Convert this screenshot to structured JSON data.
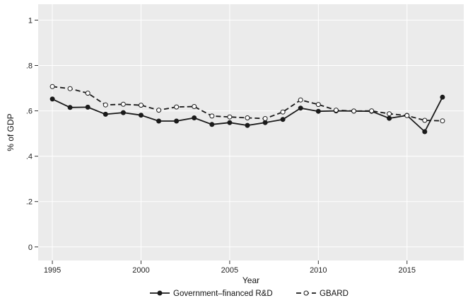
{
  "chart_data": {
    "type": "line",
    "xlabel": "Year",
    "ylabel": "% of GDP",
    "xlim": [
      1994.2,
      2018.2
    ],
    "ylim": [
      -0.06,
      1.07
    ],
    "xticks": [
      1995,
      2000,
      2005,
      2010,
      2015
    ],
    "yticks": [
      0,
      0.2,
      0.4,
      0.6,
      0.8,
      1
    ],
    "ytick_labels": [
      "0",
      ".2",
      ".4",
      ".6",
      ".8",
      "1"
    ],
    "grid": true,
    "legend_position": "bottom",
    "x": [
      1995,
      1996,
      1997,
      1998,
      1999,
      2000,
      2001,
      2002,
      2003,
      2004,
      2005,
      2006,
      2007,
      2008,
      2009,
      2010,
      2011,
      2012,
      2013,
      2014,
      2015,
      2016,
      2017
    ],
    "series": [
      {
        "name": "Government–financed R&D",
        "style": "solid",
        "marker": "filled-circle",
        "color": "#1a1a1a",
        "values": [
          0.652,
          0.615,
          0.616,
          0.585,
          0.592,
          0.581,
          0.555,
          0.555,
          0.569,
          0.54,
          0.548,
          0.536,
          0.548,
          0.562,
          0.612,
          0.598,
          0.6,
          0.599,
          0.598,
          0.567,
          0.58,
          0.508,
          0.66
        ]
      },
      {
        "name": "GBARD",
        "style": "dashed",
        "marker": "hollow-circle",
        "color": "#1a1a1a",
        "values": [
          0.707,
          0.698,
          0.678,
          0.626,
          0.629,
          0.625,
          0.603,
          0.617,
          0.619,
          0.577,
          0.573,
          0.569,
          0.566,
          0.595,
          0.648,
          0.628,
          0.603,
          0.599,
          0.6,
          0.587,
          0.579,
          0.558,
          0.556
        ]
      }
    ]
  },
  "colors": {
    "plot_background": "#ebebeb",
    "grid": "#ffffff",
    "line": "#1a1a1a"
  }
}
